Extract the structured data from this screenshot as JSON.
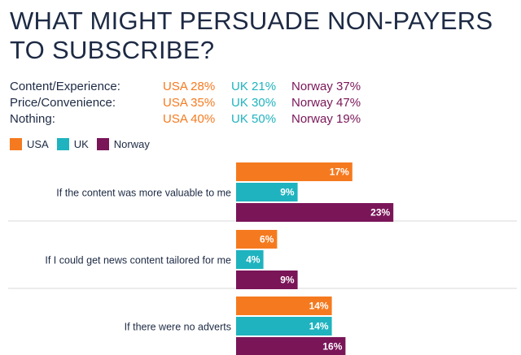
{
  "title": "WHAT MIGHT PERSUADE NON-PAYERS TO SUBSCRIBE?",
  "summary": [
    {
      "label": "Content/Experience:",
      "usa": "USA 28%",
      "uk": "UK 21%",
      "norway": "Norway 37%"
    },
    {
      "label": "Price/Convenience:",
      "usa": "USA 35%",
      "uk": "UK 30%",
      "norway": "Norway 47%"
    },
    {
      "label": "Nothing:",
      "usa": "USA 40%",
      "uk": "UK 50%",
      "norway": "Norway 19%"
    }
  ],
  "colors": {
    "usa": "#f57a1f",
    "uk": "#1fb3bf",
    "norway": "#7a1558",
    "title": "#1d2a44"
  },
  "chart_data": {
    "type": "bar",
    "orientation": "horizontal",
    "categories": [
      "If the content was more valuable to me",
      "If I could get news content tailored for me",
      "If there were no adverts"
    ],
    "series": [
      {
        "name": "USA",
        "values": [
          17,
          6,
          14
        ],
        "labels": [
          "17%",
          "6%",
          "14%"
        ]
      },
      {
        "name": "UK",
        "values": [
          9,
          4,
          14
        ],
        "labels": [
          "9%",
          "4%",
          "14%"
        ]
      },
      {
        "name": "Norway",
        "values": [
          23,
          9,
          16
        ],
        "labels": [
          "23%",
          "9%",
          "16%"
        ]
      }
    ],
    "legend": [
      "USA",
      "UK",
      "Norway"
    ],
    "legend_position": "top-left",
    "xlim": [
      0,
      40
    ],
    "grid": false
  }
}
